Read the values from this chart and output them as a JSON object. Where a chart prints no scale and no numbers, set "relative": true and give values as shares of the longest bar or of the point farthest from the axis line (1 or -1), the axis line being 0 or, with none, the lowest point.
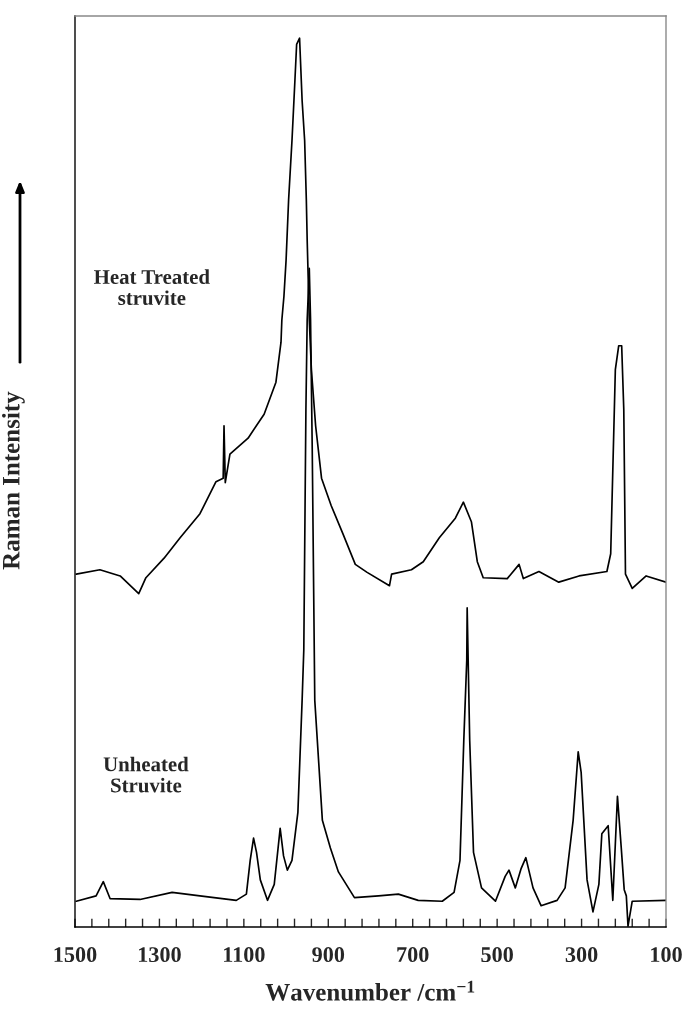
{
  "chart_data": {
    "type": "line",
    "relative": true,
    "xlabel": "Wavenumber /cm$^{−1}$",
    "ylabel": "Raman Intensity",
    "annotations": [
      "Heat Treated\nstruvite",
      "Unheated\nStruvite"
    ],
    "xlim": [
      1500,
      100
    ],
    "xticks": [
      1500,
      {
        "value": 1460,
        "label": null
      },
      {
        "value": 1420,
        "label": null
      },
      {
        "value": 1380,
        "label": null
      },
      {
        "value": 1340,
        "label": null
      },
      1300,
      {
        "value": 1260,
        "label": null
      },
      {
        "value": 1220,
        "label": null
      },
      {
        "value": 1180,
        "label": null
      },
      {
        "value": 1140,
        "label": null
      },
      1100,
      {
        "value": 1060,
        "label": null
      },
      {
        "value": 1020,
        "label": null
      },
      {
        "value": 980,
        "label": null
      },
      {
        "value": 940,
        "label": null
      },
      900,
      {
        "value": 860,
        "label": null
      },
      {
        "value": 820,
        "label": null
      },
      {
        "value": 780,
        "label": null
      },
      {
        "value": 740,
        "label": null
      },
      700,
      {
        "value": 660,
        "label": null
      },
      {
        "value": 620,
        "label": null
      },
      {
        "value": 580,
        "label": null
      },
      {
        "value": 540,
        "label": null
      },
      500,
      {
        "value": 460,
        "label": null
      },
      {
        "value": 420,
        "label": null
      },
      {
        "value": 380,
        "label": null
      },
      {
        "value": 340,
        "label": null
      },
      300,
      {
        "value": 260,
        "label": null
      },
      {
        "value": 220,
        "label": null
      },
      {
        "value": 180,
        "label": null
      },
      {
        "value": 140,
        "label": null
      },
      100
    ],
    "tick_labels": "x",
    "grid": false,
    "legend": false,
    "marker": "none",
    "line_style": "solid",
    "series": [
      {
        "color": "#000000",
        "x": [
          1497,
          1441,
          1393,
          1349,
          1332,
          1289,
          1251,
          1204,
          1166,
          1149,
          1147,
          1144,
          1133,
          1090,
          1052,
          1024,
          1012,
          1010,
          1005,
          1000,
          994,
          986,
          979,
          975,
          968,
          962,
          956,
          952,
          950,
          945,
          940,
          930,
          916,
          893,
          865,
          836,
          808,
          755,
          750,
          703,
          675,
          637,
          599,
          580,
          561,
          547,
          533,
          476,
          448,
          438,
          401,
          354,
          306,
          240,
          231,
          220,
          212,
          205,
          200,
          196,
          180,
          147,
          100
        ],
        "values": [
          0.397,
          0.402,
          0.395,
          0.375,
          0.393,
          0.415,
          0.438,
          0.465,
          0.501,
          0.505,
          0.564,
          0.5,
          0.532,
          0.55,
          0.577,
          0.613,
          0.658,
          0.683,
          0.71,
          0.75,
          0.818,
          0.885,
          0.953,
          0.993,
          1.0,
          0.93,
          0.885,
          0.818,
          0.773,
          0.683,
          0.627,
          0.564,
          0.505,
          0.474,
          0.442,
          0.408,
          0.399,
          0.384,
          0.397,
          0.402,
          0.411,
          0.438,
          0.46,
          0.478,
          0.456,
          0.411,
          0.393,
          0.392,
          0.408,
          0.392,
          0.4,
          0.388,
          0.395,
          0.4,
          0.42,
          0.627,
          0.654,
          0.654,
          0.582,
          0.397,
          0.381,
          0.395,
          0.388
        ]
      },
      {
        "color": "#000000",
        "x": [
          1497,
          1450,
          1433,
          1417,
          1346,
          1270,
          1204,
          1118,
          1094,
          1085,
          1077,
          1070,
          1061,
          1044,
          1028,
          1014,
          1006,
          997,
          986,
          972,
          962,
          958,
          953,
          950,
          945,
          942,
          938,
          932,
          914,
          895,
          876,
          838,
          781,
          734,
          687,
          630,
          602,
          588,
          579,
          572,
          571,
          565,
          556,
          537,
          504,
          481,
          472,
          457,
          443,
          432,
          415,
          396,
          358,
          339,
          320,
          308,
          301,
          287,
          273,
          259,
          252,
          237,
          226,
          215,
          206,
          199,
          194,
          190,
          180,
          100
        ],
        "values": [
          0.029,
          0.035,
          0.051,
          0.032,
          0.031,
          0.039,
          0.035,
          0.03,
          0.037,
          0.075,
          0.1,
          0.084,
          0.053,
          0.03,
          0.048,
          0.111,
          0.08,
          0.064,
          0.075,
          0.129,
          0.255,
          0.312,
          0.582,
          0.683,
          0.741,
          0.683,
          0.537,
          0.255,
          0.12,
          0.089,
          0.062,
          0.033,
          0.035,
          0.037,
          0.03,
          0.029,
          0.039,
          0.075,
          0.21,
          0.3,
          0.359,
          0.21,
          0.084,
          0.044,
          0.029,
          0.057,
          0.064,
          0.044,
          0.066,
          0.078,
          0.044,
          0.024,
          0.03,
          0.044,
          0.12,
          0.197,
          0.174,
          0.053,
          0.017,
          0.048,
          0.105,
          0.114,
          0.03,
          0.147,
          0.089,
          0.042,
          0.035,
          0.001,
          0.029,
          0.03
        ]
      }
    ]
  }
}
